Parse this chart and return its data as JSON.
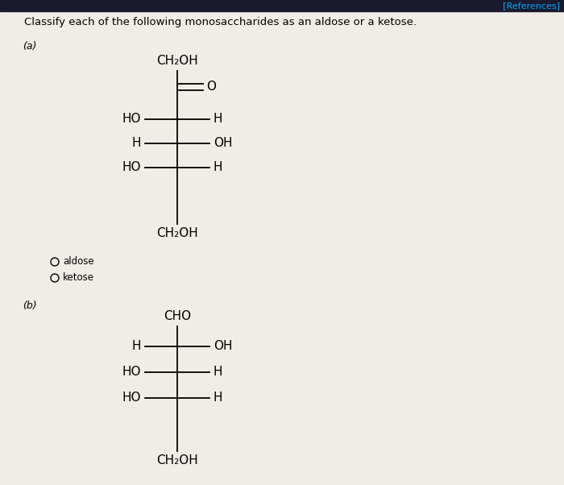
{
  "title": "Classify each of the following monosaccharides as an aldose or a ketose.",
  "references_text": "[References]",
  "references_color": "#00aaff",
  "top_bar_color": "#1a1a2e",
  "background_color": "#f0ede6",
  "title_fontsize": 9.5,
  "chem_fontsize": 11,
  "label_fontsize": 9,
  "radio_fontsize": 8.5,
  "label_a": "(a)",
  "label_b": "(b)",
  "part_a": {
    "top_group": "CH₂OH",
    "double_bond_right": "O",
    "rows": [
      {
        "left": "HO",
        "right": "H"
      },
      {
        "left": "H",
        "right": "OH"
      },
      {
        "left": "HO",
        "right": "H"
      }
    ],
    "bottom_group": "CH₂OH",
    "radio1": "aldose",
    "radio2": "ketose"
  },
  "part_b": {
    "top_group": "CHO",
    "rows": [
      {
        "left": "H",
        "right": "OH"
      },
      {
        "left": "HO",
        "right": "H"
      },
      {
        "left": "HO",
        "right": "H"
      }
    ],
    "bottom_group": "CH₂OH"
  }
}
